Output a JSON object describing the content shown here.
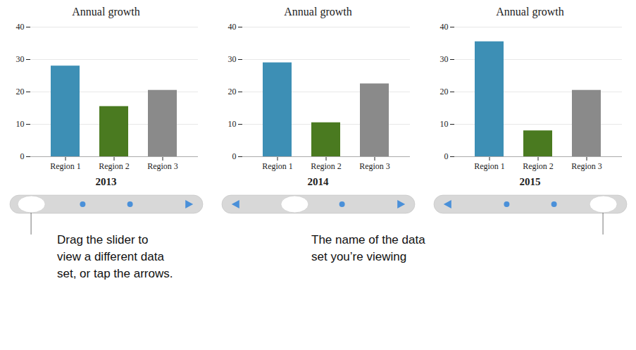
{
  "chart_data": [
    {
      "type": "bar",
      "title": "Annual growth",
      "xlabel": "2013",
      "categories": [
        "Region 1",
        "Region 2",
        "Region 3"
      ],
      "values": [
        28,
        15.5,
        20.5
      ],
      "colors": [
        "#3d8fb5",
        "#4a7a20",
        "#8a8a8a"
      ],
      "ylim": [
        0,
        40
      ],
      "yticks": [
        0,
        10,
        20,
        30,
        40
      ],
      "grid": true,
      "annotation": "Drag the slider to\nview a different data\nset, or tap the arrows."
    },
    {
      "type": "bar",
      "title": "Annual growth",
      "xlabel": "2014",
      "categories": [
        "Region 1",
        "Region 2",
        "Region 3"
      ],
      "values": [
        29,
        10.5,
        22.5
      ],
      "colors": [
        "#3d8fb5",
        "#4a7a20",
        "#8a8a8a"
      ],
      "ylim": [
        0,
        40
      ],
      "yticks": [
        0,
        10,
        20,
        30,
        40
      ],
      "grid": true
    },
    {
      "type": "bar",
      "title": "Annual growth",
      "xlabel": "2015",
      "categories": [
        "Region 1",
        "Region 2",
        "Region 3"
      ],
      "values": [
        35.5,
        8,
        20.5
      ],
      "colors": [
        "#3d8fb5",
        "#4a7a20",
        "#8a8a8a"
      ],
      "ylim": [
        0,
        40
      ],
      "yticks": [
        0,
        10,
        20,
        30,
        40
      ],
      "grid": true,
      "annotation": "The name of the data\nset you’re viewing"
    }
  ]
}
